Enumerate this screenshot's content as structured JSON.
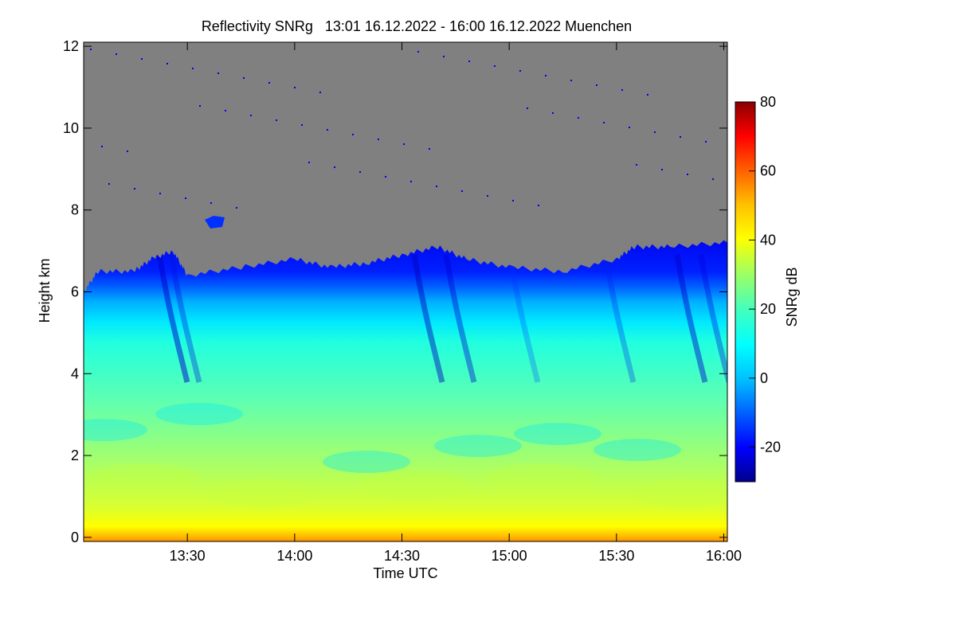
{
  "chart_data": {
    "type": "heatmap",
    "title": "Reflectivity SNRg   13:01 16.12.2022 - 16:00 16.12.2022 Muenchen",
    "xlabel": "Time UTC",
    "ylabel": "Height km",
    "xlim": [
      "13:01",
      "16:01"
    ],
    "ylim": [
      -0.1,
      12.1
    ],
    "x_ticks": [
      "13:30",
      "14:00",
      "14:30",
      "15:00",
      "15:30",
      "16:00"
    ],
    "y_ticks": [
      "0",
      "2",
      "4",
      "6",
      "8",
      "10",
      "12"
    ],
    "colorbar": {
      "label": "SNRg dB",
      "range": [
        -30,
        80
      ],
      "ticks": [
        "-20",
        "0",
        "20",
        "40",
        "60",
        "80"
      ],
      "colormap": [
        "#00008b",
        "#0000ff",
        "#0060ff",
        "#00c0ff",
        "#00ffff",
        "#40ffc0",
        "#a0ff60",
        "#ffff00",
        "#ffc000",
        "#ff6000",
        "#ff0000",
        "#8b0000"
      ]
    },
    "background_color": "#808080",
    "echo_top_km": [
      {
        "time": "13:01",
        "top": 6.0
      },
      {
        "time": "13:05",
        "top": 6.5
      },
      {
        "time": "13:15",
        "top": 6.5
      },
      {
        "time": "13:20",
        "top": 6.8
      },
      {
        "time": "13:26",
        "top": 7.0
      },
      {
        "time": "13:30",
        "top": 6.4
      },
      {
        "time": "13:45",
        "top": 6.6
      },
      {
        "time": "14:00",
        "top": 6.8
      },
      {
        "time": "14:10",
        "top": 6.6
      },
      {
        "time": "14:20",
        "top": 6.7
      },
      {
        "time": "14:30",
        "top": 6.9
      },
      {
        "time": "14:40",
        "top": 7.1
      },
      {
        "time": "14:48",
        "top": 6.8
      },
      {
        "time": "15:00",
        "top": 6.6
      },
      {
        "time": "15:15",
        "top": 6.5
      },
      {
        "time": "15:30",
        "top": 6.8
      },
      {
        "time": "15:35",
        "top": 7.1
      },
      {
        "time": "15:45",
        "top": 7.1
      },
      {
        "time": "16:00",
        "top": 7.2
      }
    ]
  }
}
